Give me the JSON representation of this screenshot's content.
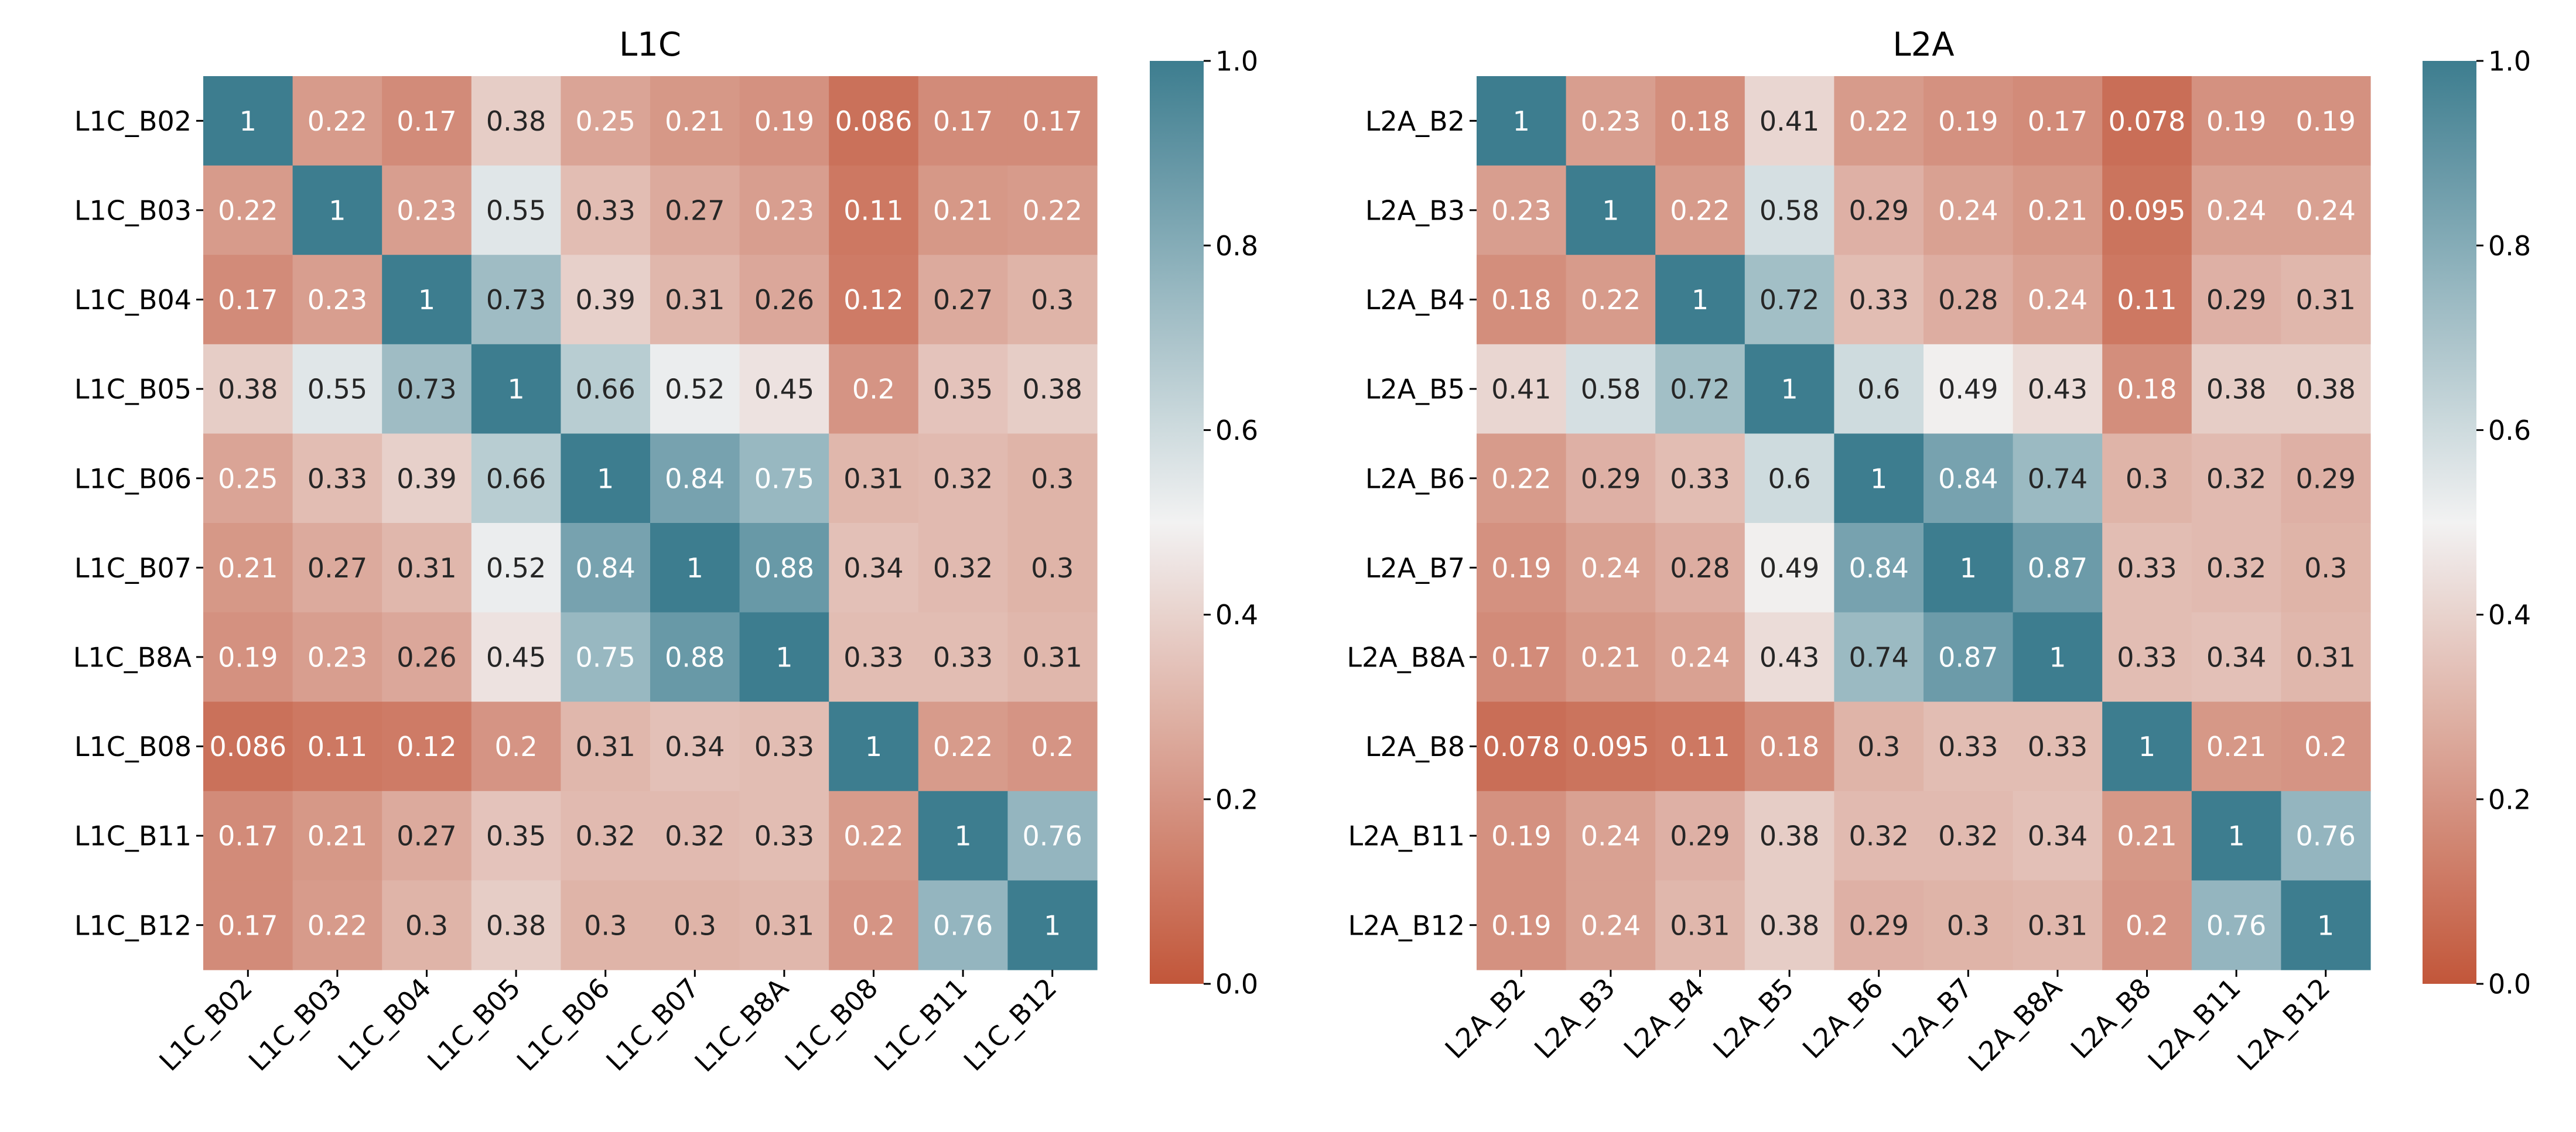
{
  "chart_data": [
    {
      "type": "heatmap",
      "title": "L1C",
      "xlabel": "",
      "ylabel": "",
      "labels": [
        "L1C_B02",
        "L1C_B03",
        "L1C_B04",
        "L1C_B05",
        "L1C_B06",
        "L1C_B07",
        "L1C_B8A",
        "L1C_B08",
        "L1C_B11",
        "L1C_B12"
      ],
      "matrix": [
        [
          1,
          0.22,
          0.17,
          0.38,
          0.25,
          0.21,
          0.19,
          0.086,
          0.17,
          0.17
        ],
        [
          0.22,
          1,
          0.23,
          0.55,
          0.33,
          0.27,
          0.23,
          0.11,
          0.21,
          0.22
        ],
        [
          0.17,
          0.23,
          1,
          0.73,
          0.39,
          0.31,
          0.26,
          0.12,
          0.27,
          0.3
        ],
        [
          0.38,
          0.55,
          0.73,
          1,
          0.66,
          0.52,
          0.45,
          0.2,
          0.35,
          0.38
        ],
        [
          0.25,
          0.33,
          0.39,
          0.66,
          1,
          0.84,
          0.75,
          0.31,
          0.32,
          0.3
        ],
        [
          0.21,
          0.27,
          0.31,
          0.52,
          0.84,
          1,
          0.88,
          0.34,
          0.32,
          0.3
        ],
        [
          0.19,
          0.23,
          0.26,
          0.45,
          0.75,
          0.88,
          1,
          0.33,
          0.33,
          0.31
        ],
        [
          0.086,
          0.11,
          0.12,
          0.2,
          0.31,
          0.34,
          0.33,
          1,
          0.22,
          0.2
        ],
        [
          0.17,
          0.21,
          0.27,
          0.35,
          0.32,
          0.32,
          0.33,
          0.22,
          1,
          0.76
        ],
        [
          0.17,
          0.22,
          0.3,
          0.38,
          0.3,
          0.3,
          0.31,
          0.2,
          0.76,
          1
        ]
      ],
      "colorbar": {
        "range": [
          0.0,
          1.0
        ],
        "ticks": [
          0.0,
          0.2,
          0.4,
          0.6,
          0.8,
          1.0
        ],
        "tick_labels": [
          "0.0",
          "0.2",
          "0.4",
          "0.6",
          "0.8",
          "1.0"
        ]
      }
    },
    {
      "type": "heatmap",
      "title": "L2A",
      "xlabel": "",
      "ylabel": "",
      "labels": [
        "L2A_B2",
        "L2A_B3",
        "L2A_B4",
        "L2A_B5",
        "L2A_B6",
        "L2A_B7",
        "L2A_B8A",
        "L2A_B8",
        "L2A_B11",
        "L2A_B12"
      ],
      "matrix": [
        [
          1,
          0.23,
          0.18,
          0.41,
          0.22,
          0.19,
          0.17,
          0.078,
          0.19,
          0.19
        ],
        [
          0.23,
          1,
          0.22,
          0.58,
          0.29,
          0.24,
          0.21,
          0.095,
          0.24,
          0.24
        ],
        [
          0.18,
          0.22,
          1,
          0.72,
          0.33,
          0.28,
          0.24,
          0.11,
          0.29,
          0.31
        ],
        [
          0.41,
          0.58,
          0.72,
          1,
          0.6,
          0.49,
          0.43,
          0.18,
          0.38,
          0.38
        ],
        [
          0.22,
          0.29,
          0.33,
          0.6,
          1,
          0.84,
          0.74,
          0.3,
          0.32,
          0.29
        ],
        [
          0.19,
          0.24,
          0.28,
          0.49,
          0.84,
          1,
          0.87,
          0.33,
          0.32,
          0.3
        ],
        [
          0.17,
          0.21,
          0.24,
          0.43,
          0.74,
          0.87,
          1,
          0.33,
          0.34,
          0.31
        ],
        [
          0.078,
          0.095,
          0.11,
          0.18,
          0.3,
          0.33,
          0.33,
          1,
          0.21,
          0.2
        ],
        [
          0.19,
          0.24,
          0.29,
          0.38,
          0.32,
          0.32,
          0.34,
          0.21,
          1,
          0.76
        ],
        [
          0.19,
          0.24,
          0.31,
          0.38,
          0.29,
          0.3,
          0.31,
          0.2,
          0.76,
          1
        ]
      ],
      "colorbar": {
        "range": [
          0.0,
          1.0
        ],
        "ticks": [
          0.0,
          0.2,
          0.4,
          0.6,
          0.8,
          1.0
        ],
        "tick_labels": [
          "0.0",
          "0.2",
          "0.4",
          "0.6",
          "0.8",
          "1.0"
        ]
      }
    }
  ],
  "colormap": {
    "low": "#c2563a",
    "mid": "#f2f2f2",
    "high": "#3d7d8f"
  }
}
